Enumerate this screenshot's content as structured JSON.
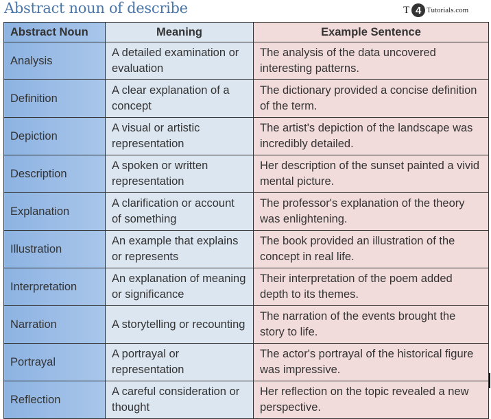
{
  "title": "Abstract noun of describe",
  "logo": {
    "t": "T",
    "four": "4",
    "rest": "Tutorials.com"
  },
  "columns": [
    "Abstract Noun",
    "Meaning",
    "Example Sentence"
  ],
  "colors": {
    "noun_col": "#8db3e2",
    "meaning_col": "#dce6f1",
    "example_col": "#f2dcdb",
    "title": "#4a76a8"
  },
  "rows": [
    {
      "noun": "Analysis",
      "meaning": "A detailed examination or evaluation",
      "example": "The analysis of the data uncovered interesting patterns."
    },
    {
      "noun": "Definition",
      "meaning": "A clear explanation of a concept",
      "example": "The dictionary provided a concise definition of the term."
    },
    {
      "noun": "Depiction",
      "meaning": "A visual or artistic representation",
      "example": "The artist's depiction of the landscape was incredibly detailed."
    },
    {
      "noun": "Description",
      "meaning": "A spoken or written representation",
      "example": "Her description of the sunset painted a vivid mental picture."
    },
    {
      "noun": "Explanation",
      "meaning": "A clarification or account of something",
      "example": "The professor's explanation of the theory was enlightening."
    },
    {
      "noun": "Illustration",
      "meaning": "An example that explains or represents",
      "example": "The book provided an illustration of the concept in real life."
    },
    {
      "noun": "Interpretation",
      "meaning": "An explanation of meaning or significance",
      "example": "Their interpretation of the poem added depth to its themes."
    },
    {
      "noun": "Narration",
      "meaning": "A storytelling or recounting",
      "example": "The narration of the events brought the story to life."
    },
    {
      "noun": "Portrayal",
      "meaning": "A portrayal or representation",
      "example": "The actor's portrayal of the historical figure was impressive."
    },
    {
      "noun": "Reflection",
      "meaning": "A careful consideration or thought",
      "example": "Her reflection on the topic revealed a new perspective."
    }
  ]
}
